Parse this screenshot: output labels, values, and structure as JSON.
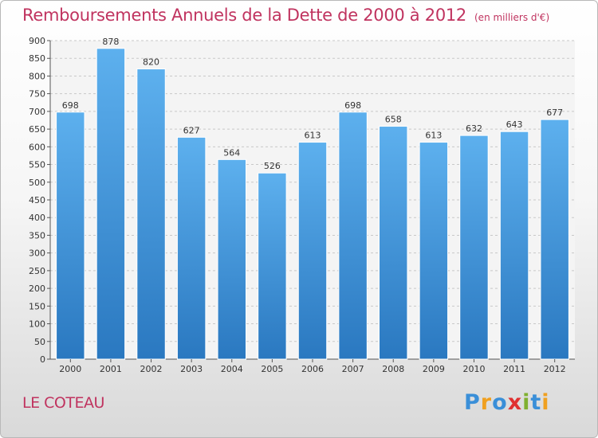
{
  "chart_data": {
    "type": "bar",
    "title": "Remboursements Annuels de la Dette de 2000 à 2012",
    "unit": "(en milliers d'€)",
    "categories": [
      "2000",
      "2001",
      "2002",
      "2003",
      "2004",
      "2005",
      "2006",
      "2007",
      "2008",
      "2009",
      "2010",
      "2011",
      "2012"
    ],
    "values": [
      698,
      878,
      820,
      627,
      564,
      526,
      613,
      698,
      658,
      613,
      632,
      643,
      677
    ],
    "ylim": [
      0,
      900
    ],
    "yticks": [
      0,
      50,
      100,
      150,
      200,
      250,
      300,
      350,
      400,
      450,
      500,
      550,
      600,
      650,
      700,
      750,
      800,
      850,
      900
    ],
    "grid": true,
    "bar_color": "#3a8fd8",
    "legend": "none"
  },
  "commune": "LE COTEAU",
  "logo": {
    "letters": [
      "P",
      "r",
      "o",
      "x",
      "i",
      "t",
      "i"
    ],
    "colors": [
      "#3a8fd8",
      "#f0a020",
      "#3a8fd8",
      "#e03030",
      "#80b030",
      "#3a8fd8",
      "#f0a020"
    ]
  }
}
